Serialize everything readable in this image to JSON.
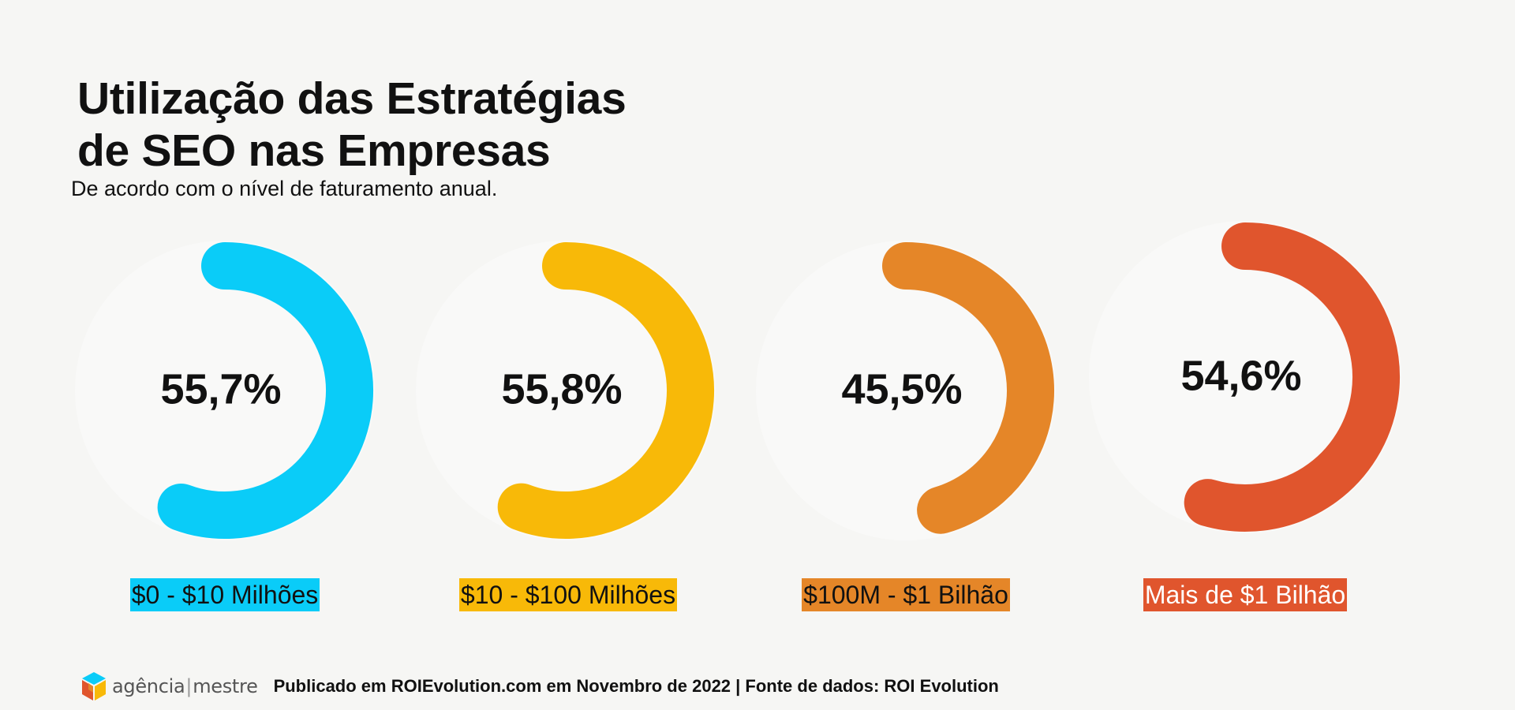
{
  "header": {
    "title_line1": "Utilização das Estratégias",
    "title_line2": "de SEO nas Empresas",
    "subtitle": "De acordo com o nível de faturamento anual."
  },
  "chart_data": {
    "type": "donut",
    "title": "Utilização das Estratégias de SEO nas Empresas",
    "subtitle": "De acordo com o nível de faturamento anual.",
    "unit": "%",
    "categories": [
      "$0 - $10 Milhões",
      "$10 - $100 Milhões",
      "$100M - $1 Bilhão",
      "Mais de $1 Bilhão"
    ],
    "values": [
      55.7,
      55.8,
      45.5,
      54.6
    ],
    "value_labels": [
      "55,7%",
      "55,8%",
      "45,5%",
      "54,6%"
    ],
    "colors": [
      "#0accf8",
      "#f8b908",
      "#e58628",
      "#e0552d"
    ],
    "track_color": "#f9f9f8"
  },
  "footer": {
    "logo_word1": "agência",
    "logo_word2": "mestre",
    "logo_icon": "agencia-mestre-logo-icon",
    "source": "Publicado em ROIEvolution.com em Novembro de 2022 | Fonte de dados: ROI Evolution"
  }
}
